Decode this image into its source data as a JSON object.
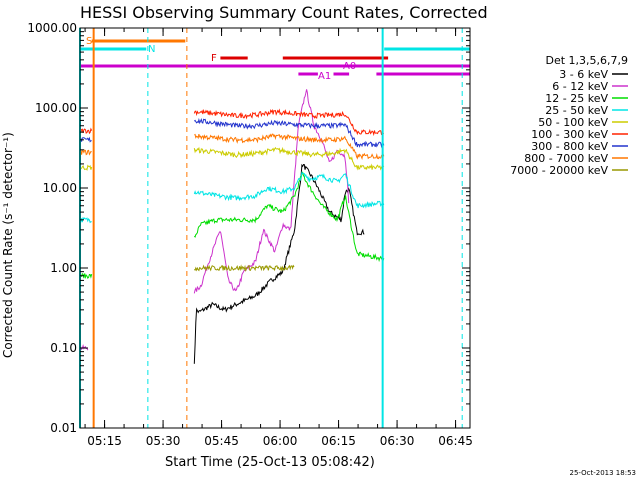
{
  "chart_data": {
    "type": "line",
    "title": "HESSI Observing Summary Count Rates, Corrected",
    "xlabel": "Start Time (25-Oct-13 05:08:42)",
    "ylabel": "Corrected Count Rate (s⁻¹ detector⁻¹)",
    "yscale": "log",
    "ylim": [
      0.01,
      1000
    ],
    "xlim_minutes": [
      0,
      100
    ],
    "x_start_time": "05:08:42",
    "y_ticks": [
      "0.01",
      "0.10",
      "1.00",
      "10.00",
      "100.00",
      "1000.00"
    ],
    "x_ticks": [
      "05:15",
      "05:30",
      "05:45",
      "06:00",
      "06:15",
      "06:30",
      "06:45"
    ],
    "legend_title": "Det 1,3,5,6,7,9",
    "legend_position": "right",
    "timestamp": "25-Oct-2013 18:53",
    "series": [
      {
        "name": "3 - 6 keV",
        "color": "#000000",
        "pre": [
          [
            0,
            80
          ]
        ],
        "post": [
          [
            29.3,
            0.06
          ],
          [
            29.8,
            0.3
          ],
          [
            30.5,
            0.28
          ],
          [
            34,
            0.35
          ],
          [
            37,
            0.3
          ],
          [
            40,
            0.35
          ],
          [
            45,
            0.45
          ],
          [
            49,
            0.7
          ],
          [
            52,
            0.9
          ],
          [
            55,
            3
          ],
          [
            57,
            20
          ],
          [
            59,
            15
          ],
          [
            61,
            10
          ],
          [
            64,
            5
          ],
          [
            67,
            4
          ],
          [
            68,
            9
          ],
          [
            69,
            9.5
          ],
          [
            71,
            2.8
          ],
          [
            73,
            2.8
          ]
        ]
      },
      {
        "name": "6 - 12 keV",
        "color": "#cc33cc",
        "pre": [
          [
            0,
            0.1
          ],
          [
            2,
            0.1
          ]
        ],
        "post": [
          [
            29.3,
            0.5
          ],
          [
            31,
            0.6
          ],
          [
            33,
            1.2
          ],
          [
            36,
            3
          ],
          [
            38,
            0.7
          ],
          [
            40,
            0.5
          ],
          [
            42,
            0.9
          ],
          [
            45,
            1.2
          ],
          [
            47,
            3
          ],
          [
            50,
            1.6
          ],
          [
            52,
            3.5
          ],
          [
            54,
            3
          ],
          [
            56,
            60
          ],
          [
            58,
            170
          ],
          [
            60,
            60
          ],
          [
            62,
            40
          ],
          [
            64,
            20
          ],
          [
            66,
            30
          ],
          [
            68,
            25
          ],
          [
            69,
            6
          ]
        ]
      },
      {
        "name": "12 - 25 keV",
        "color": "#00dd00",
        "pre": [
          [
            0,
            0.8
          ],
          [
            3,
            0.8
          ]
        ],
        "post": [
          [
            29.3,
            2.4
          ],
          [
            31,
            3.5
          ],
          [
            35,
            4
          ],
          [
            40,
            4
          ],
          [
            45,
            4
          ],
          [
            48,
            6
          ],
          [
            52,
            5
          ],
          [
            55,
            8
          ],
          [
            57,
            15
          ],
          [
            59,
            10
          ],
          [
            62,
            6
          ],
          [
            66,
            4
          ],
          [
            68,
            8
          ],
          [
            71,
            1.5
          ],
          [
            78,
            1.3
          ]
        ]
      },
      {
        "name": "25 - 50 keV",
        "color": "#00e5e5",
        "pre": [
          [
            0,
            4
          ],
          [
            3,
            4
          ]
        ],
        "post": [
          [
            29.3,
            9
          ],
          [
            35,
            8
          ],
          [
            40,
            7.5
          ],
          [
            45,
            8
          ],
          [
            48,
            10
          ],
          [
            52,
            9
          ],
          [
            55,
            10
          ],
          [
            57,
            15
          ],
          [
            59,
            13
          ],
          [
            62,
            14
          ],
          [
            66,
            12
          ],
          [
            68,
            15
          ],
          [
            71,
            6
          ],
          [
            78,
            6.5
          ]
        ]
      },
      {
        "name": "50 - 100 keV",
        "color": "#cccc00",
        "pre": [
          [
            0,
            18
          ],
          [
            3,
            18
          ]
        ],
        "post": [
          [
            29.3,
            30
          ],
          [
            35,
            28
          ],
          [
            40,
            26
          ],
          [
            45,
            27
          ],
          [
            50,
            30
          ],
          [
            55,
            28
          ],
          [
            60,
            26
          ],
          [
            65,
            27
          ],
          [
            68,
            30
          ],
          [
            71,
            18
          ],
          [
            78,
            18
          ]
        ]
      },
      {
        "name": "100 - 300 keV",
        "color": "#ff2200",
        "pre": [
          [
            0,
            52
          ],
          [
            3,
            52
          ]
        ],
        "post": [
          [
            29.3,
            90
          ],
          [
            35,
            85
          ],
          [
            40,
            80
          ],
          [
            45,
            82
          ],
          [
            50,
            90
          ],
          [
            55,
            85
          ],
          [
            60,
            80
          ],
          [
            65,
            82
          ],
          [
            68,
            85
          ],
          [
            71,
            50
          ],
          [
            78,
            50
          ]
        ]
      },
      {
        "name": "300 - 800 keV",
        "color": "#2233cc",
        "pre": [
          [
            0,
            40
          ],
          [
            3,
            40
          ]
        ],
        "post": [
          [
            29.3,
            70
          ],
          [
            35,
            65
          ],
          [
            40,
            60
          ],
          [
            45,
            60
          ],
          [
            50,
            65
          ],
          [
            55,
            62
          ],
          [
            60,
            60
          ],
          [
            65,
            60
          ],
          [
            68,
            62
          ],
          [
            71,
            35
          ],
          [
            78,
            35
          ]
        ]
      },
      {
        "name": "800 - 7000 keV",
        "color": "#ff7700",
        "pre": [
          [
            0,
            28
          ],
          [
            3,
            28
          ]
        ],
        "post": [
          [
            29.3,
            45
          ],
          [
            35,
            42
          ],
          [
            40,
            40
          ],
          [
            45,
            40
          ],
          [
            50,
            45
          ],
          [
            55,
            42
          ],
          [
            60,
            40
          ],
          [
            65,
            40
          ],
          [
            68,
            42
          ],
          [
            71,
            25
          ],
          [
            78,
            25
          ]
        ]
      },
      {
        "name": "7000 - 20000 keV",
        "color": "#999900",
        "pre": [],
        "post": [
          [
            29.3,
            1
          ],
          [
            55,
            1
          ]
        ]
      }
    ],
    "flag_bars": [
      {
        "label": "S",
        "color": "#ff7700",
        "row": 0,
        "segments": [
          [
            3,
            27
          ]
        ]
      },
      {
        "label": "N",
        "color": "#00e5e5",
        "row": 1,
        "segments": [
          [
            0,
            17
          ],
          [
            78,
            100
          ]
        ]
      },
      {
        "label": "F",
        "color": "#dd0000",
        "row": 2,
        "segments": [
          [
            36,
            43
          ],
          [
            52,
            79
          ]
        ]
      },
      {
        "label": "A0",
        "color": "#cc00cc",
        "row": 3,
        "segments": [
          [
            0,
            100
          ]
        ]
      },
      {
        "label": "A1",
        "color": "#cc00cc",
        "row": 4,
        "segments": [
          [
            56,
            61
          ],
          [
            65,
            69
          ],
          [
            76,
            100
          ]
        ]
      }
    ],
    "vlines": [
      {
        "t": 0,
        "color": "#00e5e5",
        "style": "solid"
      },
      {
        "t": 3.5,
        "color": "#ff7700",
        "style": "solid"
      },
      {
        "t": 17.4,
        "color": "#00e5e5",
        "style": "dash"
      },
      {
        "t": 27.4,
        "color": "#ff7700",
        "style": "dash"
      },
      {
        "t": 77.6,
        "color": "#00e5e5",
        "style": "solid"
      },
      {
        "t": 98,
        "color": "#00e5e5",
        "style": "dash"
      }
    ]
  }
}
